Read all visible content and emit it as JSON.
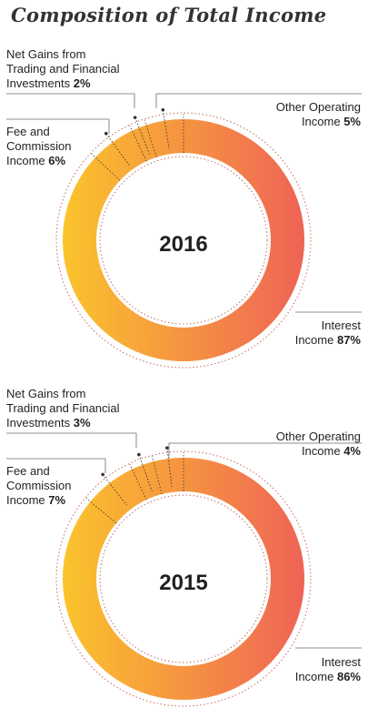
{
  "page": {
    "title": "Composition of Total  Income"
  },
  "colors": {
    "gradient_start": "#fbc42c",
    "gradient_end": "#ef6356",
    "leader": "#333333",
    "dotted": "#c76a5c"
  },
  "chart_data": [
    {
      "type": "pie",
      "title": "2016",
      "segments": [
        {
          "label_lines": [
            "Net Gains from",
            "Trading and Financial",
            "Investments"
          ],
          "value": 2,
          "display": "2%"
        },
        {
          "label_lines": [
            "Other Operating",
            "Income"
          ],
          "value": 5,
          "display": "5%"
        },
        {
          "label_lines": [
            "Fee and",
            "Commission",
            "Income"
          ],
          "value": 6,
          "display": "6%"
        },
        {
          "label_lines": [
            "Interest",
            "Income"
          ],
          "value": 87,
          "display": "87%"
        }
      ]
    },
    {
      "type": "pie",
      "title": "2015",
      "segments": [
        {
          "label_lines": [
            "Net Gains from",
            "Trading and Financial",
            "Investments"
          ],
          "value": 3,
          "display": "3%"
        },
        {
          "label_lines": [
            "Other Operating",
            "Income"
          ],
          "value": 4,
          "display": "4%"
        },
        {
          "label_lines": [
            "Fee and",
            "Commission",
            "Income"
          ],
          "value": 7,
          "display": "7%"
        },
        {
          "label_lines": [
            "Interest",
            "Income"
          ],
          "value": 86,
          "display": "86%"
        }
      ]
    }
  ]
}
